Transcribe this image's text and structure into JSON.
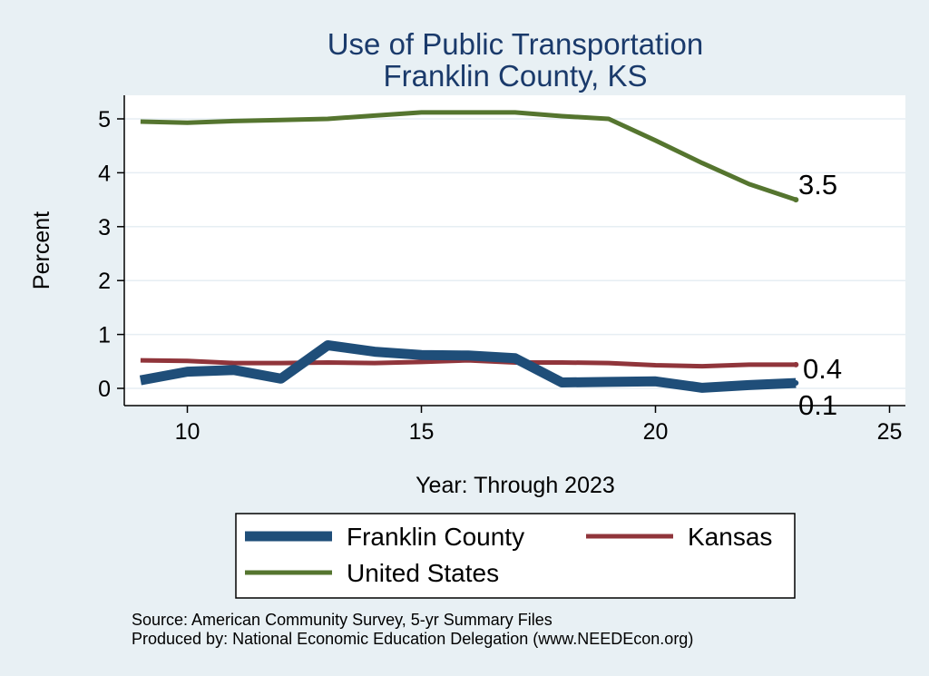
{
  "chart_data": {
    "type": "line",
    "title": "Use of Public Transportation",
    "subtitle": "Franklin County, KS",
    "xlabel": "Year: Through 2023",
    "ylabel": "Percent",
    "xlim": [
      9,
      25
    ],
    "ylim": [
      0,
      5
    ],
    "xticks": [
      10,
      15,
      20,
      25
    ],
    "yticks": [
      0,
      1,
      2,
      3,
      4,
      5
    ],
    "grid": true,
    "legend_position": "bottom",
    "series": [
      {
        "name": "Franklin County",
        "color": "#1f4e79",
        "x": [
          9,
          10,
          11,
          12,
          13,
          14,
          15,
          16,
          17,
          18,
          19,
          20,
          21,
          22,
          23
        ],
        "values": [
          0.15,
          0.31,
          0.34,
          0.18,
          0.8,
          0.68,
          0.62,
          0.61,
          0.56,
          0.11,
          0.12,
          0.13,
          0.01,
          0.06,
          0.1
        ],
        "end_label": "0.1"
      },
      {
        "name": "Kansas",
        "color": "#90353b",
        "x": [
          9,
          10,
          11,
          12,
          13,
          14,
          15,
          16,
          17,
          18,
          19,
          20,
          21,
          22,
          23
        ],
        "values": [
          0.52,
          0.51,
          0.47,
          0.47,
          0.48,
          0.47,
          0.49,
          0.52,
          0.48,
          0.48,
          0.47,
          0.43,
          0.41,
          0.44,
          0.44
        ],
        "end_label": "0.4"
      },
      {
        "name": "United States",
        "color": "#55752f",
        "x": [
          9,
          10,
          11,
          12,
          13,
          14,
          15,
          16,
          17,
          18,
          19,
          20,
          21,
          22,
          23
        ],
        "values": [
          4.95,
          4.93,
          4.96,
          4.98,
          5.0,
          5.06,
          5.12,
          5.12,
          5.12,
          5.05,
          5.0,
          4.6,
          4.18,
          3.79,
          3.5
        ],
        "end_label": "3.5"
      }
    ]
  },
  "notes": {
    "source": "Source: American Community Survey, 5-yr Summary Files",
    "produced": "Produced by: National Economic Education Delegation (www.NEEDEcon.org)"
  }
}
